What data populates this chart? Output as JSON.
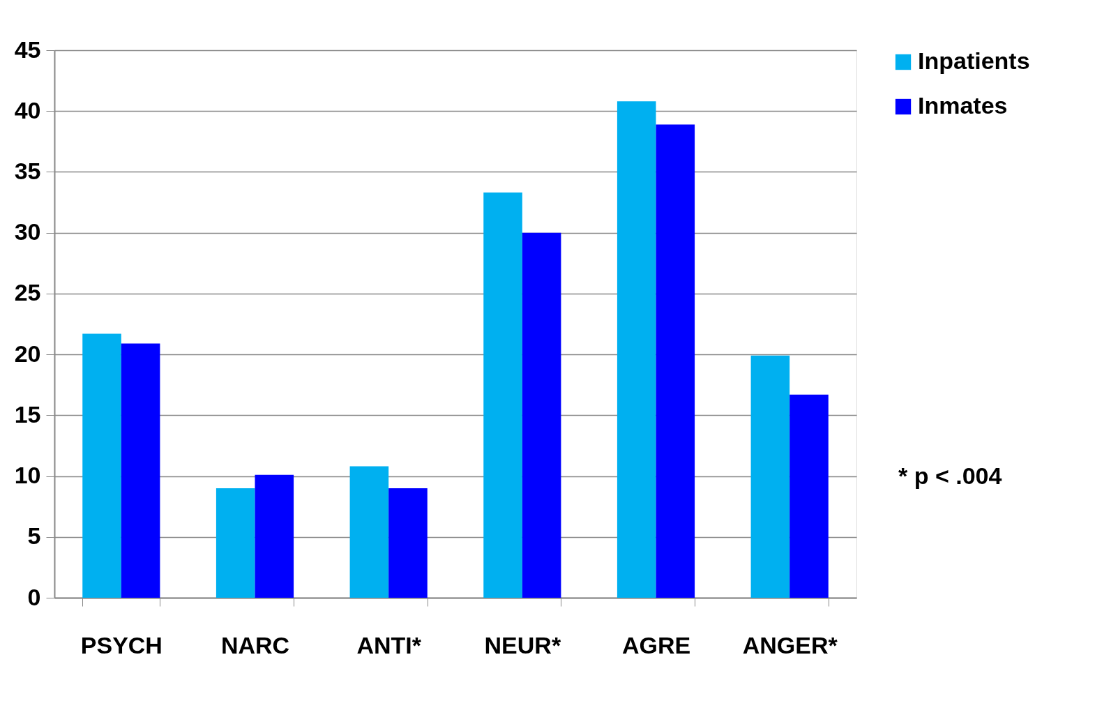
{
  "chart_data": {
    "type": "bar",
    "categories": [
      "PSYCH",
      "NARC",
      "ANTI*",
      "NEUR*",
      "AGRE",
      "ANGER*"
    ],
    "series": [
      {
        "name": "Inpatients",
        "color": "#00b0f0",
        "values": [
          21.7,
          9.0,
          10.8,
          33.3,
          40.8,
          19.9
        ]
      },
      {
        "name": "Inmates",
        "color": "#0000ff",
        "values": [
          20.9,
          10.1,
          9.0,
          30.0,
          38.9,
          16.7
        ]
      }
    ],
    "ylim": [
      0,
      45
    ],
    "yticks": [
      0,
      5,
      10,
      15,
      20,
      25,
      30,
      35,
      40,
      45
    ],
    "grid": "y",
    "legend": "right",
    "annotations": [
      "* p < .004"
    ]
  }
}
